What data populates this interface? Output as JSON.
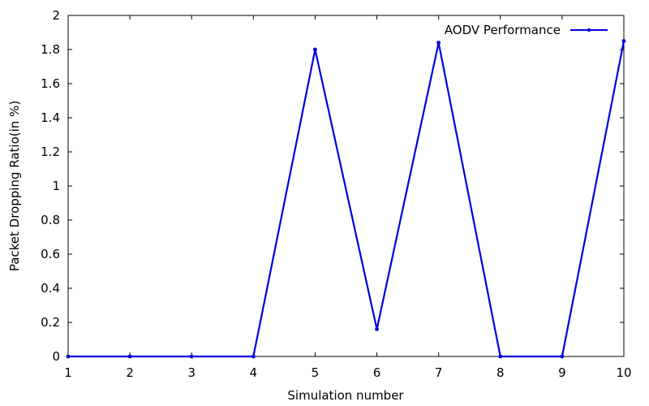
{
  "chart_data": {
    "type": "line",
    "title": "",
    "xlabel": "Simulation number",
    "ylabel": "Packet Dropping Ratio(in %)",
    "x": [
      1,
      2,
      3,
      4,
      5,
      6,
      7,
      8,
      9,
      10
    ],
    "xlim": [
      1,
      10
    ],
    "ylim": [
      0,
      2
    ],
    "x_ticks": [
      "1",
      "2",
      "3",
      "4",
      "5",
      "6",
      "7",
      "8",
      "9",
      "10"
    ],
    "y_ticks": [
      "0",
      "0.2",
      "0.4",
      "0.6",
      "0.8",
      "1",
      "1.2",
      "1.4",
      "1.6",
      "1.8",
      "2"
    ],
    "grid": false,
    "legend": "top-right",
    "series": [
      {
        "name": "AODV Performance",
        "color": "#0000e0",
        "values": [
          0,
          0,
          0,
          0,
          1.8,
          0.16,
          1.84,
          0,
          0,
          1.85
        ]
      }
    ]
  }
}
